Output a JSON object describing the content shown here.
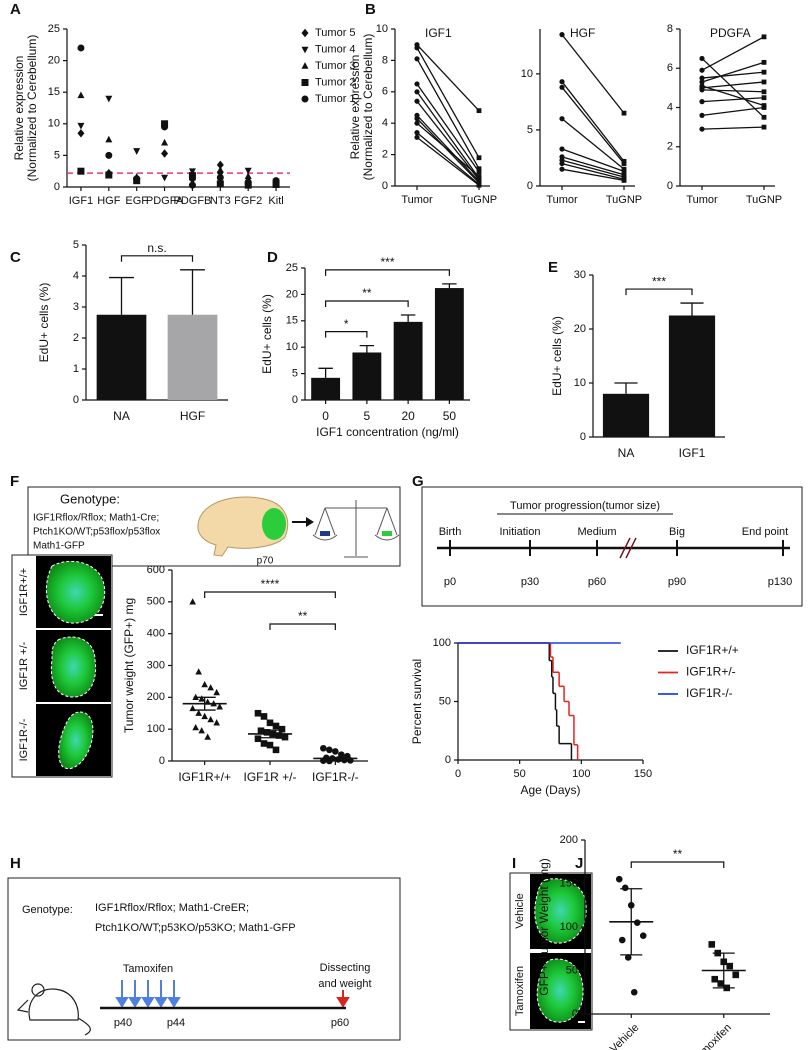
{
  "panel_labels": [
    "A",
    "B",
    "C",
    "D",
    "E",
    "F",
    "G",
    "H",
    "I",
    "J"
  ],
  "chart_data": [
    {
      "type": "scatter",
      "categories": [
        "IGF1",
        "HGF",
        "EGF",
        "PDGFA",
        "PDGFB",
        "NT3",
        "FGF2",
        "Kitl"
      ],
      "ylabel": [
        "Relative expression",
        "(Normalized to Cerebellum)"
      ],
      "ylim": [
        0,
        25
      ],
      "yticks": [
        0,
        5,
        10,
        15,
        20,
        25
      ],
      "reference_line": {
        "value": 2.2,
        "color": "#e8387f"
      },
      "legend": "upper right",
      "series": [
        {
          "name": "Tumor 5",
          "marker": "diamond",
          "color": "#111111",
          "values": [
            8.5,
            2.2,
            1.2,
            5.3,
            1.2,
            3.5,
            0.6,
            0.8
          ]
        },
        {
          "name": "Tumor 4",
          "marker": "triangle-down",
          "color": "#111111",
          "values": [
            9.7,
            14,
            5.7,
            1.5,
            2.5,
            2.0,
            2.6,
            0.9
          ]
        },
        {
          "name": "Tumor 3",
          "marker": "triangle",
          "color": "#111111",
          "values": [
            14.5,
            7.5,
            1.6,
            7,
            1.5,
            2.7,
            1.7,
            0.6
          ]
        },
        {
          "name": "Tumor 2",
          "marker": "square",
          "color": "#111111",
          "values": [
            2.5,
            1.9,
            1.0,
            10,
            1.8,
            0.5,
            0.3,
            0.4
          ]
        },
        {
          "name": "Tumor 1",
          "marker": "circle",
          "color": "#111111",
          "values": [
            22,
            5,
            1.3,
            9.5,
            0.3,
            1.5,
            0.8,
            1.0
          ]
        }
      ]
    },
    {
      "type": "paired",
      "title": "IGF1",
      "categories": [
        "Tumor",
        "TuGNP"
      ],
      "ylabel": [
        "Relative expression",
        "(Normalized to Cerebellum)"
      ],
      "ylim": [
        0,
        10
      ],
      "yticks": [
        0,
        2,
        4,
        6,
        8,
        10
      ],
      "color": "#111111",
      "pairs": [
        [
          9,
          4.8
        ],
        [
          8.8,
          1.8
        ],
        [
          8.1,
          1.1
        ],
        [
          6.5,
          0.9
        ],
        [
          6,
          0.5
        ],
        [
          5.4,
          0.4
        ],
        [
          4.5,
          0.3
        ],
        [
          4.3,
          0.2
        ],
        [
          4,
          0.6
        ],
        [
          3.4,
          0.1
        ],
        [
          3.1,
          0.05
        ]
      ]
    },
    {
      "type": "paired",
      "title": "HGF",
      "categories": [
        "Tumor",
        "TuGNP"
      ],
      "ylim": [
        0,
        14
      ],
      "yticks": [
        0,
        5,
        10
      ],
      "color": "#111111",
      "pairs": [
        [
          13.5,
          6.5
        ],
        [
          9.3,
          2.2
        ],
        [
          8.8,
          2.0
        ],
        [
          6,
          1.5
        ],
        [
          3.3,
          1.3
        ],
        [
          2.6,
          1.0
        ],
        [
          2.3,
          0.8
        ],
        [
          2,
          0.6
        ],
        [
          1.5,
          0.5
        ]
      ]
    },
    {
      "type": "paired",
      "title": "PDGFA",
      "categories": [
        "Tumor",
        "TuGNP"
      ],
      "ylim": [
        0,
        8
      ],
      "yticks": [
        0,
        2,
        4,
        6,
        8
      ],
      "color": "#111111",
      "pairs": [
        [
          6.5,
          3.5
        ],
        [
          5.9,
          7.6
        ],
        [
          5.5,
          5.8
        ],
        [
          5.3,
          6.3
        ],
        [
          5.0,
          5.3
        ],
        [
          4.9,
          4.8
        ],
        [
          4.3,
          4.5
        ],
        [
          3.6,
          4.0
        ],
        [
          2.9,
          3.0
        ],
        [
          5.1,
          4.1
        ]
      ]
    },
    {
      "type": "bar",
      "categories": [
        "NA",
        "HGF"
      ],
      "values": [
        2.75,
        2.75
      ],
      "errors": [
        1.2,
        1.45
      ],
      "colors": [
        "#111111",
        "#a6a6a8"
      ],
      "ylabel": "EdU+ cells (%)",
      "ylim": [
        0,
        5
      ],
      "yticks": [
        0,
        1,
        2,
        3,
        4,
        5
      ],
      "brackets": [
        {
          "text": "n.s.",
          "between": [
            "NA",
            "HGF"
          ]
        }
      ]
    },
    {
      "type": "bar",
      "categories": [
        "0",
        "5",
        "20",
        "50"
      ],
      "values": [
        4.2,
        9,
        14.8,
        21.2
      ],
      "errors": [
        1.8,
        1.3,
        1.3,
        0.8
      ],
      "colors": [
        "#111111",
        "#111111",
        "#111111",
        "#111111"
      ],
      "ylabel": "EdU+ cells (%)",
      "xlabel": "IGF1 concentration (ng/ml)",
      "ylim": [
        0,
        25
      ],
      "yticks": [
        0,
        5,
        10,
        15,
        20,
        25
      ],
      "brackets": [
        {
          "text": "*",
          "between": [
            "0",
            "5"
          ]
        },
        {
          "text": "**",
          "between": [
            "0",
            "20"
          ]
        },
        {
          "text": "***",
          "between": [
            "0",
            "50"
          ]
        }
      ]
    },
    {
      "type": "bar",
      "categories": [
        "NA",
        "IGF1"
      ],
      "values": [
        8,
        22.5
      ],
      "errors": [
        2,
        2.3
      ],
      "colors": [
        "#111111",
        "#111111"
      ],
      "ylabel": "EdU+ cells (%)",
      "ylim": [
        0,
        30
      ],
      "yticks": [
        0,
        10,
        20,
        30
      ],
      "brackets": [
        {
          "text": "***",
          "between": [
            "NA",
            "IGF1"
          ]
        }
      ]
    },
    {
      "type": "dotplot",
      "categories": [
        "IGF1R+/+",
        "IGF1R +/-",
        "IGF1R-/-"
      ],
      "markers": [
        "triangle",
        "square",
        "circle"
      ],
      "color": "#111111",
      "points": [
        [
          500,
          280,
          240,
          230,
          215,
          200,
          195,
          185,
          180,
          170,
          165,
          150,
          140,
          130,
          120,
          105,
          95,
          75
        ],
        [
          150,
          140,
          120,
          110,
          100,
          95,
          90,
          85,
          80,
          75,
          70,
          55,
          50,
          35
        ],
        [
          40,
          35,
          30,
          20,
          15,
          10,
          8,
          5,
          3,
          2,
          1,
          0
        ]
      ],
      "means": [
        180,
        85,
        8
      ],
      "errors": [
        20,
        12,
        3
      ],
      "ylabel": "Tumor weight (GFP+) mg",
      "ylim": [
        0,
        600
      ],
      "yticks": [
        0,
        100,
        200,
        300,
        400,
        500,
        600
      ],
      "brackets": [
        {
          "text": "****",
          "between": [
            "IGF1R+/+",
            "IGF1R-/-"
          ]
        },
        {
          "text": "**",
          "between": [
            "IGF1R +/-",
            "IGF1R-/-"
          ]
        }
      ]
    },
    {
      "type": "line",
      "steps": true,
      "xlabel": "Age (Days)",
      "ylabel": "Percent survival",
      "xlim": [
        0,
        150
      ],
      "xticks": [
        0,
        50,
        100,
        150
      ],
      "ylim": [
        0,
        100
      ],
      "yticks": [
        0,
        50,
        100
      ],
      "legend": "upper right",
      "series": [
        {
          "name": "IGF1R+/+",
          "color": "#111111",
          "x": [
            0,
            74,
            76,
            77,
            79,
            80,
            82,
            86,
            92
          ],
          "values": [
            100,
            85,
            71,
            57,
            43,
            29,
            14,
            14,
            0
          ]
        },
        {
          "name": "IGF1R+/-",
          "color": "#e8221c",
          "x": [
            0,
            75,
            77,
            82,
            86,
            90,
            94,
            97
          ],
          "values": [
            100,
            88,
            75,
            63,
            50,
            38,
            13,
            0
          ]
        },
        {
          "name": "IGF1R-/-",
          "color": "#1c3fe8",
          "x": [
            0,
            132
          ],
          "values": [
            100,
            100
          ]
        }
      ]
    },
    {
      "type": "dotplot",
      "categories": [
        "Vehicle",
        "Tamoxifen"
      ],
      "markers": [
        "circle",
        "square"
      ],
      "color": "#111111",
      "points": [
        [
          155,
          145,
          125,
          105,
          90,
          85,
          65,
          25
        ],
        [
          80,
          70,
          60,
          55,
          45,
          40,
          35,
          30
        ]
      ],
      "means": [
        106,
        50
      ],
      "errors": [
        38,
        20
      ],
      "ylabel": "GFP+ Tumor Weight (mg)",
      "ylim": [
        0,
        200
      ],
      "yticks": [
        0,
        50,
        100,
        150,
        200
      ],
      "brackets": [
        {
          "text": "**",
          "between": [
            "Vehicle",
            "Tamoxifen"
          ]
        }
      ]
    }
  ],
  "diagrams": {
    "f": {
      "genotype_title": "Genotype:",
      "genotype_lines": [
        "IGF1Rflox/Rflox; Math1-Cre;",
        "Ptch1KO/WT;p53flox/p53flox",
        "Math1-GFP"
      ],
      "age": "p70",
      "images": [
        "IGF1R+/+",
        "IGF1R +/-",
        "IGF1R-/-"
      ]
    },
    "g": {
      "title": "Tumor progression(tumor size)",
      "stages": [
        "Birth",
        "Initiation",
        "Medium",
        "Big",
        "End point"
      ],
      "days": [
        "p0",
        "p30",
        "p60",
        "p90",
        "p130"
      ]
    },
    "h": {
      "genotype_title": "Genotype:",
      "genotype_lines": [
        "IGF1Rflox/Rflox; Math1-CreER;",
        "Ptch1KO/WT;p53KO/p53KO; Math1-GFP"
      ],
      "treatment": "Tamoxifen",
      "end_lines": [
        "Dissecting",
        "and weight"
      ],
      "days": [
        "p40",
        "p44",
        "p60"
      ]
    },
    "i": {
      "images": [
        "Vehicle",
        "Tamoxifen"
      ]
    }
  }
}
